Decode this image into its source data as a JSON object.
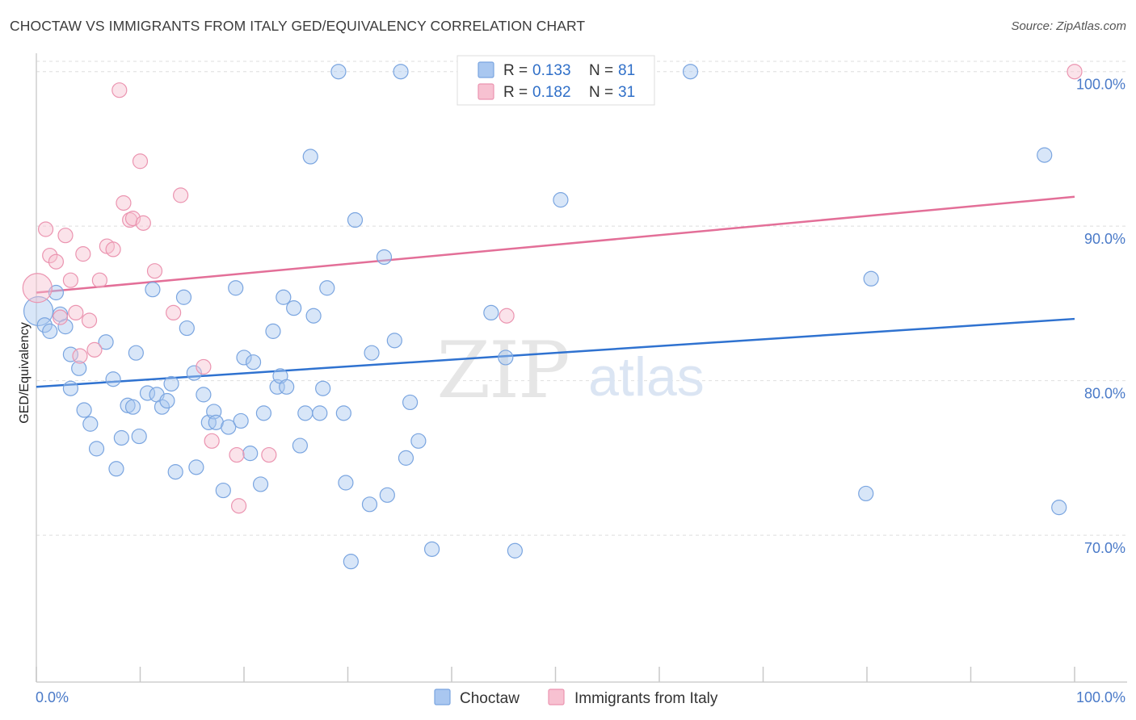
{
  "chart_data": {
    "type": "scatter",
    "title": "CHOCTAW VS IMMIGRANTS FROM ITALY GED/EQUIVALENCY CORRELATION CHART",
    "source": "Source: ZipAtlas.com",
    "xlabel": "",
    "ylabel": "GED/Equivalency",
    "xlim": [
      0,
      100
    ],
    "ylim": [
      60.5,
      101.5
    ],
    "x_tick_labels": [
      "0.0%",
      "100.0%"
    ],
    "y_ticks": [
      70,
      80,
      90,
      100
    ],
    "y_tick_labels": [
      "70.0%",
      "80.0%",
      "90.0%",
      "100.0%"
    ],
    "watermark": {
      "zip": "ZIP",
      "atlas": "atlas"
    },
    "legend_r_label": "R = ",
    "legend_n_label": "N = ",
    "series": [
      {
        "name": "Choctaw",
        "color": "#a9c7f0",
        "stroke": "#7aa5e0",
        "line_color": "#2f72d0",
        "r": "0.133",
        "n": "81",
        "trend": [
          [
            0,
            79.6
          ],
          [
            100,
            84.0
          ]
        ],
        "points": [
          [
            0.2,
            84.5
          ],
          [
            0.8,
            83.6
          ],
          [
            1.3,
            83.2
          ],
          [
            1.9,
            85.7
          ],
          [
            2.3,
            84.3
          ],
          [
            2.8,
            83.5
          ],
          [
            3.3,
            81.7
          ],
          [
            4.1,
            80.8
          ],
          [
            3.3,
            79.5
          ],
          [
            4.6,
            78.1
          ],
          [
            5.2,
            77.2
          ],
          [
            5.8,
            75.6
          ],
          [
            6.7,
            82.5
          ],
          [
            7.4,
            80.1
          ],
          [
            7.7,
            74.3
          ],
          [
            8.2,
            76.3
          ],
          [
            8.8,
            78.4
          ],
          [
            9.3,
            78.3
          ],
          [
            9.6,
            81.8
          ],
          [
            9.9,
            76.4
          ],
          [
            10.7,
            79.2
          ],
          [
            11.2,
            85.9
          ],
          [
            11.6,
            79.1
          ],
          [
            12.1,
            78.3
          ],
          [
            12.6,
            78.7
          ],
          [
            13.0,
            79.8
          ],
          [
            13.4,
            74.1
          ],
          [
            14.2,
            85.4
          ],
          [
            14.5,
            83.4
          ],
          [
            15.2,
            80.5
          ],
          [
            15.4,
            74.4
          ],
          [
            16.1,
            79.1
          ],
          [
            16.6,
            77.3
          ],
          [
            17.1,
            78.0
          ],
          [
            17.3,
            77.3
          ],
          [
            18.0,
            72.9
          ],
          [
            18.5,
            77.0
          ],
          [
            19.2,
            86.0
          ],
          [
            19.7,
            77.4
          ],
          [
            20.0,
            81.5
          ],
          [
            20.6,
            75.3
          ],
          [
            20.9,
            81.2
          ],
          [
            21.6,
            73.3
          ],
          [
            21.9,
            77.9
          ],
          [
            22.8,
            83.2
          ],
          [
            23.2,
            79.6
          ],
          [
            23.5,
            80.3
          ],
          [
            23.8,
            85.4
          ],
          [
            24.1,
            79.6
          ],
          [
            24.8,
            84.7
          ],
          [
            25.4,
            75.8
          ],
          [
            25.9,
            77.9
          ],
          [
            26.4,
            94.5
          ],
          [
            26.7,
            84.2
          ],
          [
            27.3,
            77.9
          ],
          [
            27.6,
            79.5
          ],
          [
            28.0,
            86.0
          ],
          [
            29.1,
            100.0
          ],
          [
            29.6,
            77.9
          ],
          [
            29.8,
            73.4
          ],
          [
            30.3,
            68.3
          ],
          [
            30.7,
            90.4
          ],
          [
            32.1,
            72.0
          ],
          [
            32.3,
            81.8
          ],
          [
            33.5,
            88.0
          ],
          [
            33.8,
            72.6
          ],
          [
            34.5,
            82.6
          ],
          [
            35.1,
            100.0
          ],
          [
            35.6,
            75.0
          ],
          [
            36.0,
            78.6
          ],
          [
            36.8,
            76.1
          ],
          [
            38.1,
            69.1
          ],
          [
            43.8,
            84.4
          ],
          [
            45.2,
            81.5
          ],
          [
            46.1,
            69.0
          ],
          [
            50.5,
            91.7
          ],
          [
            63.0,
            100.0
          ],
          [
            79.9,
            72.7
          ],
          [
            80.4,
            86.6
          ],
          [
            97.1,
            94.6
          ],
          [
            98.5,
            71.8
          ]
        ]
      },
      {
        "name": "Immigrants from Italy",
        "color": "#f7c1d1",
        "stroke": "#eb94b0",
        "line_color": "#e36f98",
        "r": "0.182",
        "n": "31",
        "trend": [
          [
            0,
            85.7
          ],
          [
            100,
            91.9
          ]
        ],
        "points": [
          [
            0.1,
            86.0
          ],
          [
            0.9,
            89.8
          ],
          [
            1.3,
            88.1
          ],
          [
            1.9,
            87.7
          ],
          [
            2.3,
            84.1
          ],
          [
            2.8,
            89.4
          ],
          [
            3.3,
            86.5
          ],
          [
            3.8,
            84.4
          ],
          [
            4.2,
            81.6
          ],
          [
            4.5,
            88.2
          ],
          [
            5.1,
            83.9
          ],
          [
            5.6,
            82.0
          ],
          [
            6.1,
            86.5
          ],
          [
            6.8,
            88.7
          ],
          [
            7.4,
            88.5
          ],
          [
            8.0,
            98.8
          ],
          [
            8.4,
            91.5
          ],
          [
            9.0,
            90.4
          ],
          [
            9.3,
            90.5
          ],
          [
            10.0,
            94.2
          ],
          [
            10.3,
            90.2
          ],
          [
            11.4,
            87.1
          ],
          [
            13.2,
            84.4
          ],
          [
            13.9,
            92.0
          ],
          [
            16.1,
            80.9
          ],
          [
            16.9,
            76.1
          ],
          [
            19.3,
            75.2
          ],
          [
            19.5,
            71.9
          ],
          [
            22.4,
            75.2
          ],
          [
            45.3,
            84.2
          ],
          [
            100.0,
            100.0
          ]
        ]
      }
    ]
  }
}
